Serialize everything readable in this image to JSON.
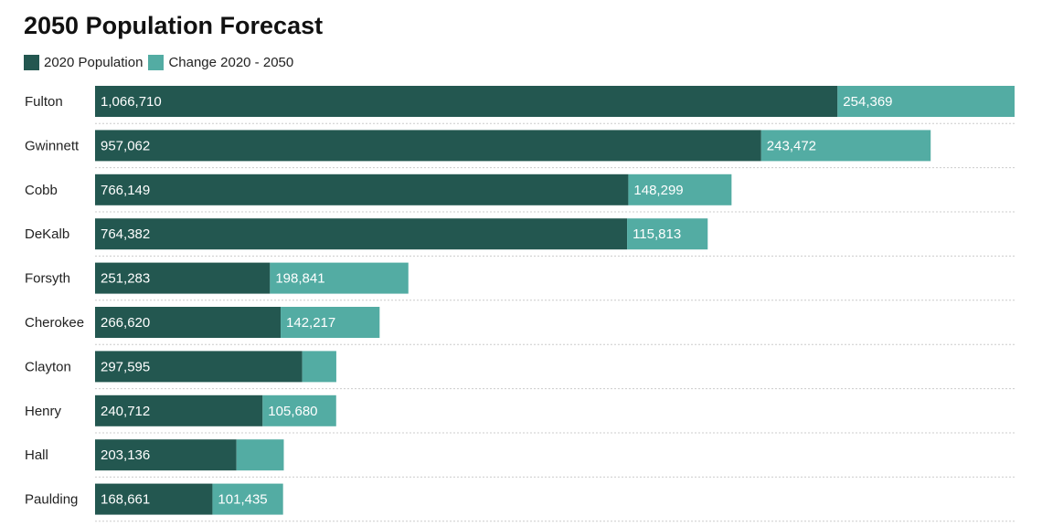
{
  "colors": {
    "population": "#235750",
    "change": "#53aca3",
    "gridline": "#cccccc"
  },
  "chart_data": {
    "type": "bar",
    "orientation": "horizontal",
    "stacked": true,
    "title": "2050 Population Forecast",
    "xlabel": "",
    "ylabel": "",
    "xlim": [
      0,
      1321079
    ],
    "grid": "dotted row separators",
    "legend_position": "top-left",
    "categories": [
      "Fulton",
      "Gwinnett",
      "Cobb",
      "DeKalb",
      "Forsyth",
      "Cherokee",
      "Clayton",
      "Henry",
      "Hall",
      "Paulding"
    ],
    "series": [
      {
        "name": "2020 Population",
        "color": "#235750",
        "values": [
          1066710,
          957062,
          766149,
          764382,
          251283,
          266620,
          297595,
          240712,
          203136,
          168661
        ],
        "labels": [
          "1,066,710",
          "957,062",
          "766,149",
          "764,382",
          "251,283",
          "266,620",
          "297,595",
          "240,712",
          "203,136",
          "168,661"
        ]
      },
      {
        "name": "Change 2020 - 2050",
        "color": "#53aca3",
        "values": [
          254369,
          243472,
          148299,
          115813,
          198841,
          142217,
          49000,
          105680,
          68000,
          101435
        ],
        "labels": [
          "254,369",
          "243,472",
          "148,299",
          "115,813",
          "198,841",
          "142,217",
          "",
          "105,680",
          "",
          "101,435"
        ]
      }
    ]
  }
}
